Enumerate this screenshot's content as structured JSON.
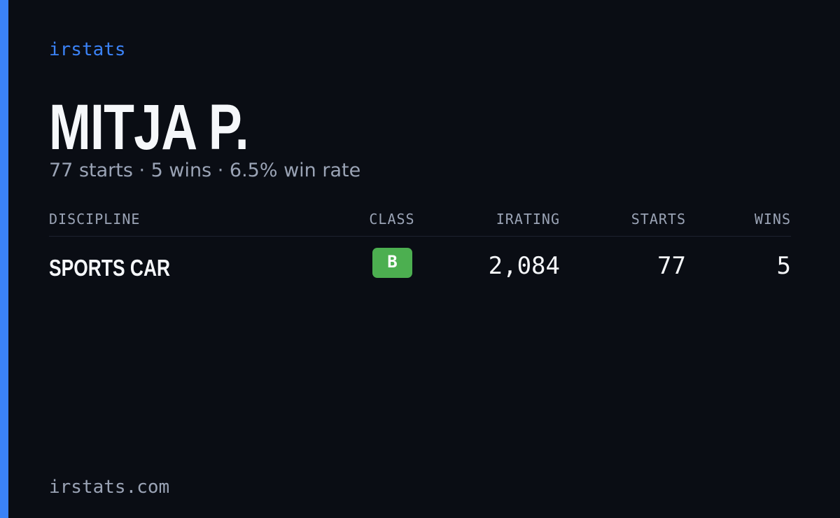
{
  "brand": "irstats",
  "driver": {
    "name": "MITJA P.",
    "summary": "77 starts · 5 wins · 6.5% win rate"
  },
  "table": {
    "headers": [
      "DISCIPLINE",
      "CLASS",
      "IRATING",
      "STARTS",
      "WINS"
    ],
    "rows": [
      [
        "SPORTS CAR",
        "B",
        "2,084",
        "77",
        "5"
      ]
    ]
  },
  "footer": "irstats.com"
}
